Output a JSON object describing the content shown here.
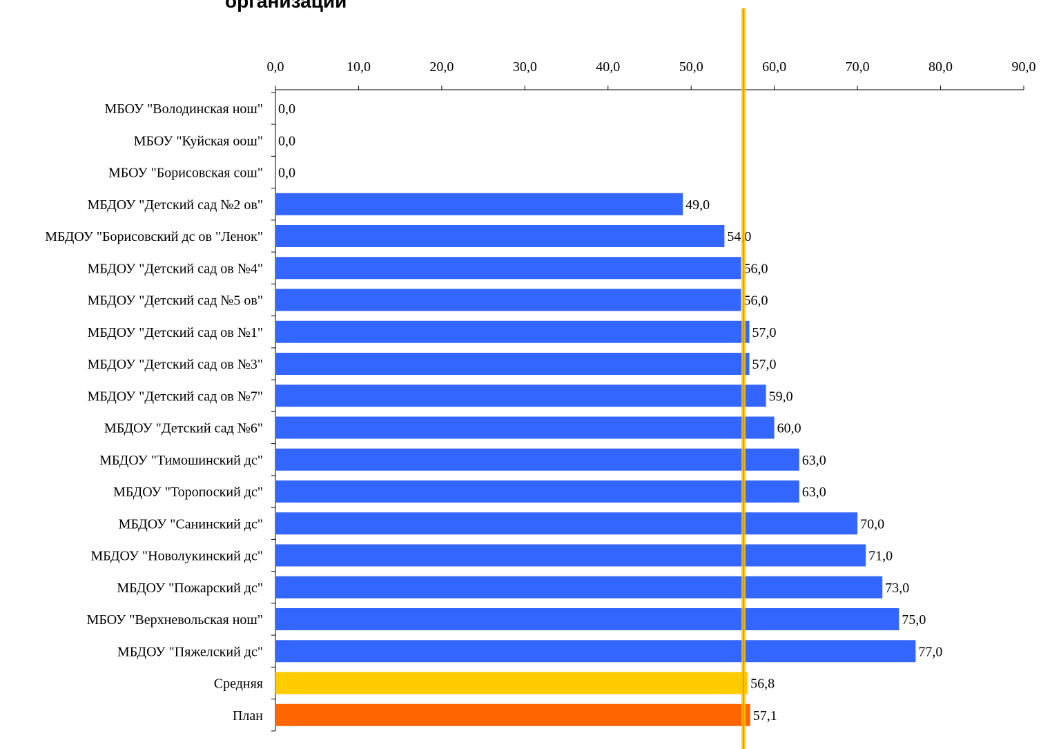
{
  "chart_data": {
    "type": "bar",
    "orientation": "horizontal",
    "title": "организаций",
    "xlim": [
      0,
      90
    ],
    "x_ticks": [
      "0,0",
      "10,0",
      "20,0",
      "30,0",
      "40,0",
      "50,0",
      "60,0",
      "70,0",
      "80,0",
      "90,0"
    ],
    "x_tick_values": [
      0,
      10,
      20,
      30,
      40,
      50,
      60,
      70,
      80,
      90
    ],
    "x_axis_position": "top",
    "grid": false,
    "legend": "none",
    "categories": [
      "МБОУ \"Володинская нош\"",
      "МБОУ \"Куйская оош\"",
      "МБОУ \"Борисовская сош\"",
      "МБДОУ \"Детский сад №2 ов\"",
      "МБДОУ \"Борисовский дс ов \"Ленок\"",
      "МБДОУ \"Детский сад ов №4\"",
      "МБДОУ \"Детский сад №5 ов\"",
      "МБДОУ \"Детский сад ов №1\"",
      "МБДОУ \"Детский сад ов №3\"",
      "МБДОУ \"Детский сад ов №7\"",
      "МБДОУ \"Детский сад №6\"",
      "МБДОУ \"Тимошинский дс\"",
      "МБДОУ \"Торопоский дс\"",
      "МБДОУ \"Санинский дс\"",
      "МБДОУ \"Новолукинский дс\"",
      "МБДОУ \"Пожарский дс\"",
      "МБОУ \"Верхневольская нош\"",
      "МБДОУ \"Пяжелский дс\"",
      "Средняя",
      "План"
    ],
    "values": [
      0,
      0,
      0,
      49,
      54,
      56,
      56,
      57,
      57,
      59,
      60,
      63,
      63,
      70,
      71,
      73,
      75,
      77,
      56.8,
      57.1
    ],
    "value_labels": [
      "0,0",
      "0,0",
      "0,0",
      "49,0",
      "54,0",
      "56,0",
      "56,0",
      "57,0",
      "57,0",
      "59,0",
      "60,0",
      "63,0",
      "63,0",
      "70,0",
      "71,0",
      "73,0",
      "75,0",
      "77,0",
      "56,8",
      "57,1"
    ],
    "bar_colors": [
      "#3366ff",
      "#3366ff",
      "#3366ff",
      "#3366ff",
      "#3366ff",
      "#3366ff",
      "#3366ff",
      "#3366ff",
      "#3366ff",
      "#3366ff",
      "#3366ff",
      "#3366ff",
      "#3366ff",
      "#3366ff",
      "#3366ff",
      "#3366ff",
      "#3366ff",
      "#3366ff",
      "#ffcc00",
      "#ff6600"
    ],
    "reference_line": {
      "value": 56.3,
      "color": "#ffc000"
    }
  }
}
